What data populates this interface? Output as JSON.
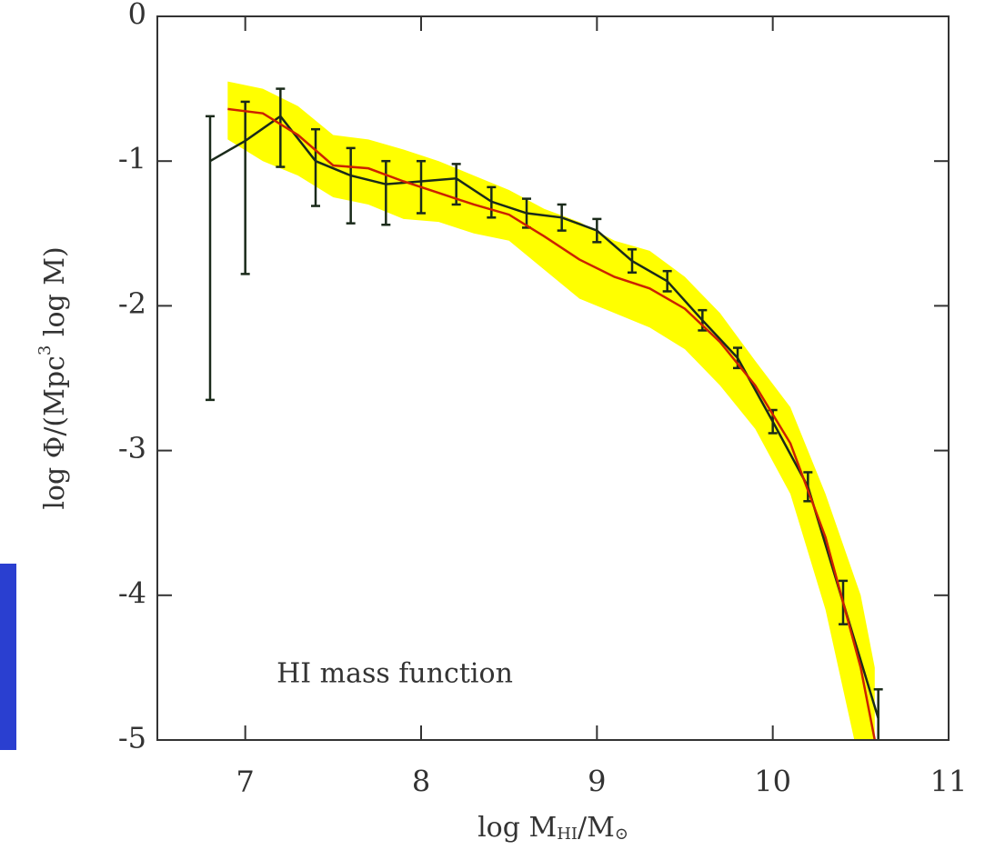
{
  "chart_data": {
    "type": "line",
    "x_label_parts": [
      "log M",
      "HI",
      "/M",
      "⊙"
    ],
    "y_label_parts": [
      "log Φ/(Mpc",
      "3",
      " log M)"
    ],
    "annotation": {
      "text": "HI mass function",
      "x": 7.85,
      "y": -4.55
    },
    "xlim": [
      6.5,
      11
    ],
    "ylim": [
      -5,
      0
    ],
    "xticks": [
      7,
      8,
      9,
      10,
      11
    ],
    "yticks": [
      0,
      -1,
      -2,
      -3,
      -4,
      -5
    ],
    "band": {
      "color": "#ffff00",
      "x": [
        6.9,
        7.1,
        7.3,
        7.5,
        7.7,
        7.9,
        8.1,
        8.3,
        8.5,
        8.7,
        8.9,
        9.1,
        9.3,
        9.5,
        9.7,
        9.9,
        10.1,
        10.3,
        10.5,
        10.58
      ],
      "upper": [
        -0.45,
        -0.5,
        -0.62,
        -0.82,
        -0.85,
        -0.92,
        -1.0,
        -1.1,
        -1.2,
        -1.33,
        -1.42,
        -1.55,
        -1.62,
        -1.8,
        -2.05,
        -2.38,
        -2.7,
        -3.3,
        -4.0,
        -4.5
      ],
      "lower": [
        -0.85,
        -1.0,
        -1.1,
        -1.25,
        -1.3,
        -1.4,
        -1.42,
        -1.5,
        -1.55,
        -1.75,
        -1.95,
        -2.05,
        -2.15,
        -2.3,
        -2.55,
        -2.85,
        -3.3,
        -4.1,
        -5.2,
        -5.6
      ]
    },
    "series": [
      {
        "color": "#1a2a1a",
        "x": [
          6.8,
          7.0,
          7.2,
          7.4,
          7.6,
          7.8,
          8.0,
          8.2,
          8.4,
          8.6,
          8.8,
          9.0,
          9.2,
          9.4,
          9.6,
          9.8,
          10.0,
          10.2,
          10.4,
          10.6
        ],
        "values": [
          -1.0,
          -0.86,
          -0.69,
          -1.0,
          -1.1,
          -1.16,
          -1.14,
          -1.12,
          -1.28,
          -1.36,
          -1.39,
          -1.48,
          -1.69,
          -1.83,
          -2.1,
          -2.36,
          -2.8,
          -3.25,
          -4.05,
          -4.85
        ],
        "error_plus": [
          0.31,
          0.27,
          0.19,
          0.22,
          0.19,
          0.16,
          0.14,
          0.1,
          0.1,
          0.1,
          0.09,
          0.08,
          0.08,
          0.07,
          0.07,
          0.07,
          0.08,
          0.1,
          0.15,
          0.2
        ],
        "error_minus": [
          1.65,
          0.92,
          0.35,
          0.31,
          0.33,
          0.28,
          0.22,
          0.18,
          0.11,
          0.1,
          0.09,
          0.08,
          0.08,
          0.07,
          0.07,
          0.07,
          0.08,
          0.1,
          0.15,
          0.2
        ]
      },
      {
        "color": "#cc2200",
        "x": [
          6.9,
          7.1,
          7.3,
          7.5,
          7.7,
          7.9,
          8.1,
          8.3,
          8.5,
          8.7,
          8.9,
          9.1,
          9.3,
          9.5,
          9.7,
          9.9,
          10.1,
          10.3,
          10.5,
          10.58
        ],
        "values": [
          -0.64,
          -0.67,
          -0.82,
          -1.03,
          -1.05,
          -1.14,
          -1.22,
          -1.3,
          -1.37,
          -1.52,
          -1.68,
          -1.8,
          -1.88,
          -2.02,
          -2.25,
          -2.55,
          -2.95,
          -3.6,
          -4.5,
          -5.0
        ]
      }
    ]
  }
}
